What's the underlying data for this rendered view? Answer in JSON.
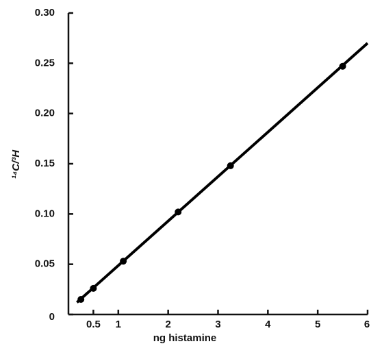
{
  "chart_data": {
    "type": "scatter",
    "x_label": "ng histamine",
    "y_label": "¹⁴C/³H",
    "x": [
      0.25,
      0.5,
      1.1,
      2.2,
      3.25,
      5.5
    ],
    "values": [
      0.015,
      0.026,
      0.053,
      0.102,
      0.148,
      0.247
    ],
    "fit_line": {
      "x": [
        0.17,
        6
      ],
      "y": [
        0.012,
        0.27
      ]
    },
    "color": "#000000",
    "xlim": [
      0,
      6
    ],
    "ylim": [
      0,
      0.3
    ],
    "xticks": [
      0.5,
      1,
      2,
      3,
      4,
      5,
      6
    ],
    "yticks": [
      0,
      0.05,
      {
        "value": 0.1,
        "label": "0.10"
      },
      0.15,
      {
        "value": 0.2,
        "label": "0.20"
      },
      0.25,
      {
        "value": 0.3,
        "label": "0.30"
      }
    ]
  }
}
